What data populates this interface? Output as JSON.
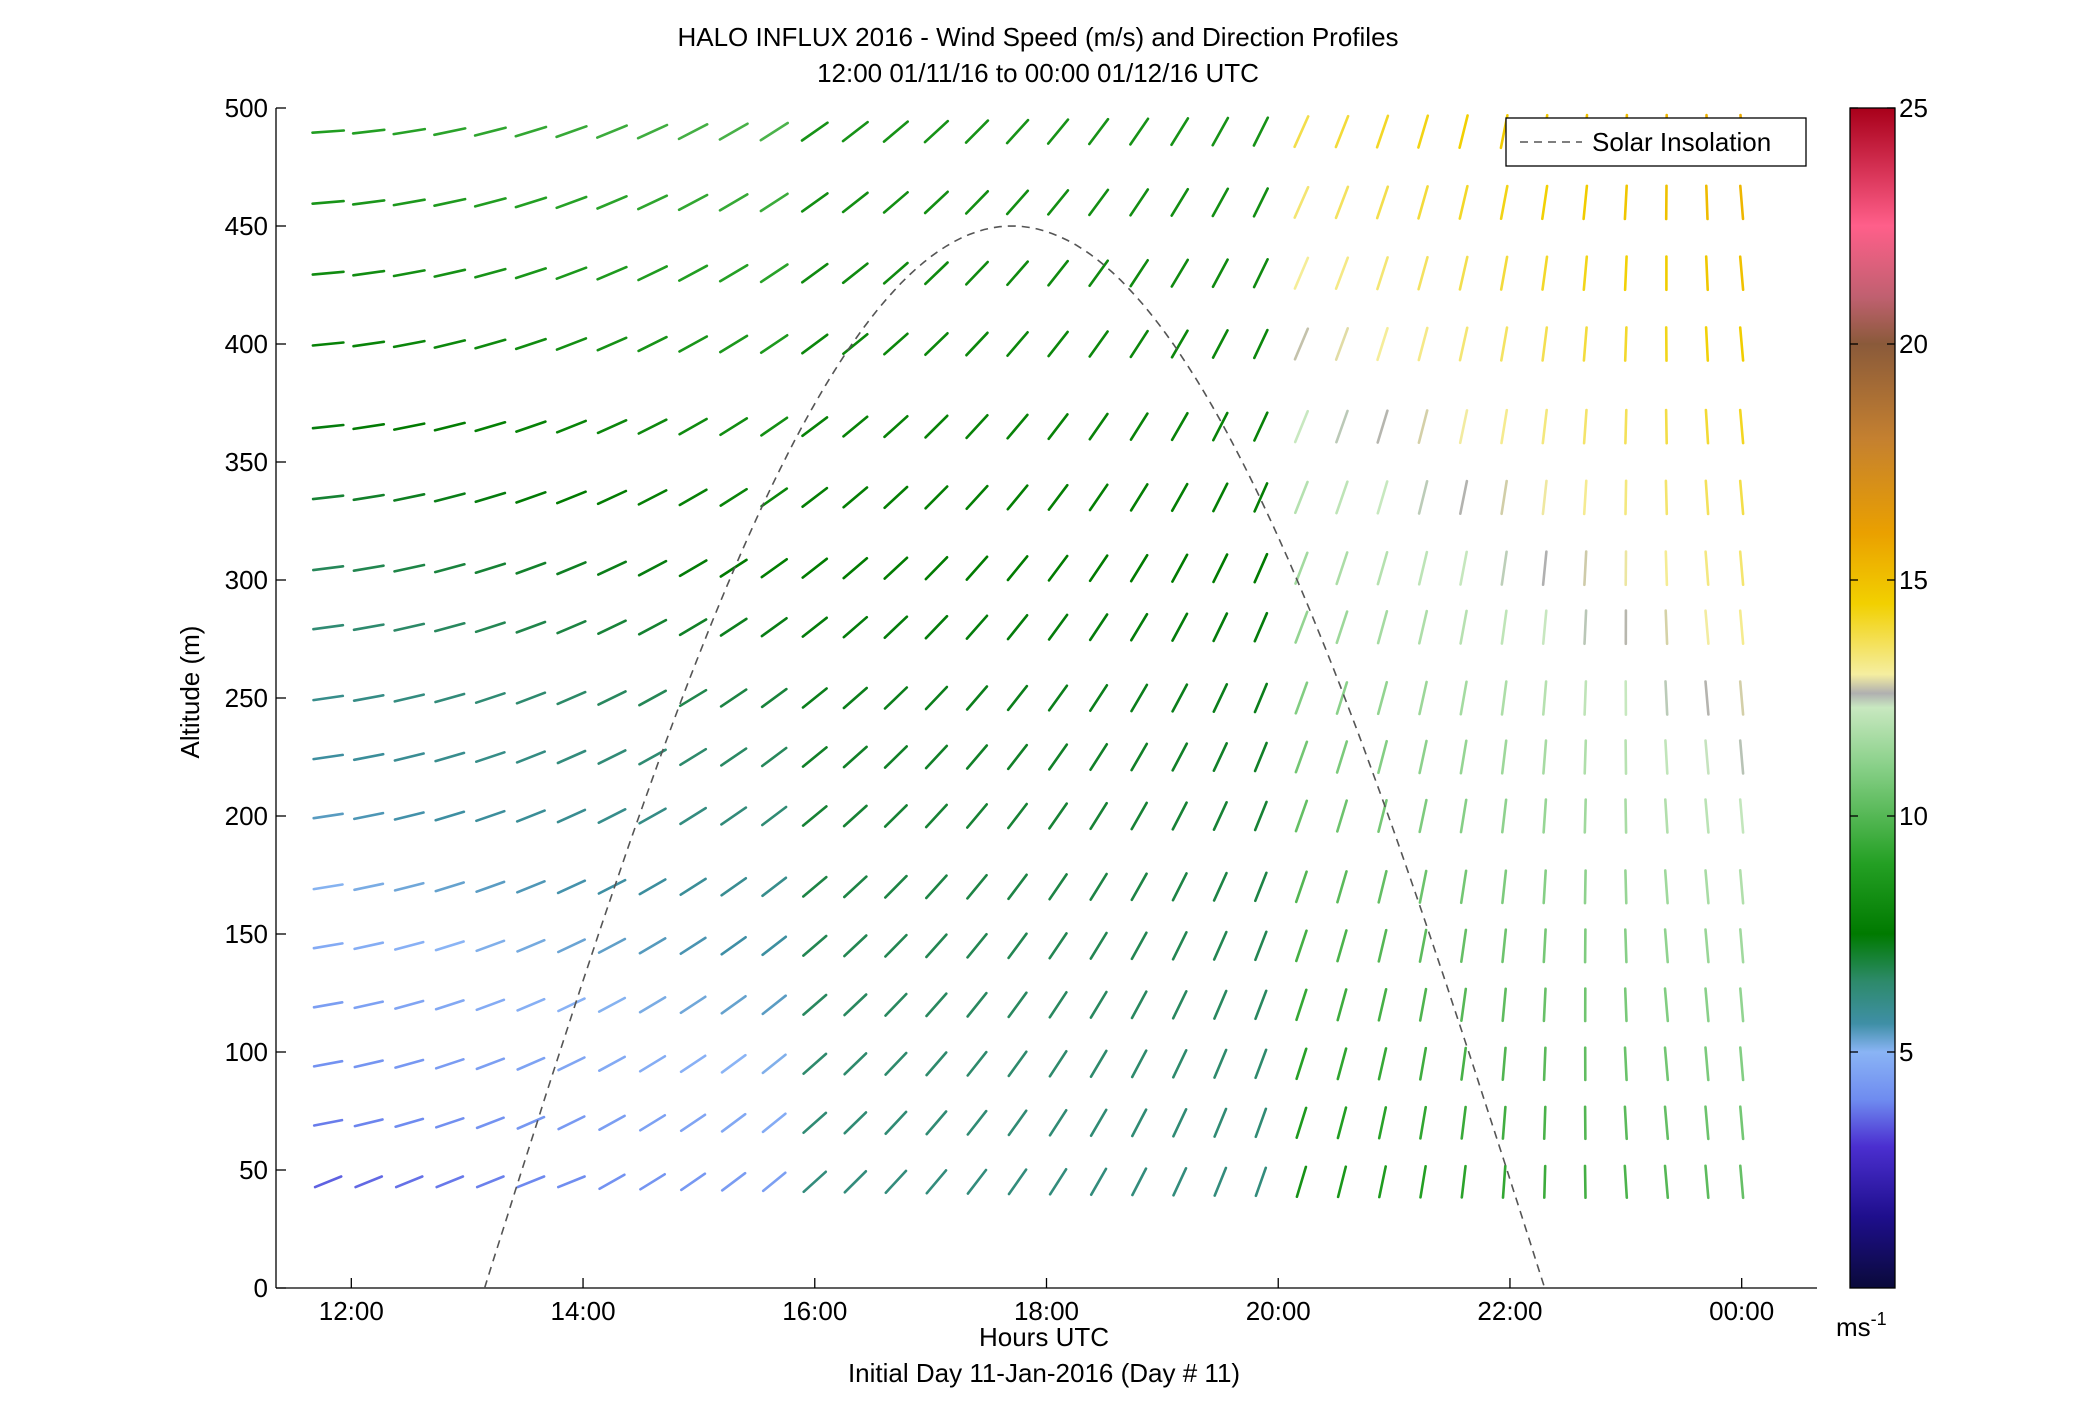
{
  "chart_data": {
    "type": "wind-barb-profile",
    "title": "HALO INFLUX 2016 - Wind Speed (m/s) and Direction Profiles",
    "subtitle": "12:00 01/11/16 to 00:00 01/12/16  UTC",
    "xlabel": "Hours UTC",
    "xlabel2": "Initial Day 11-Jan-2016 (Day # 11)",
    "ylabel": "Altitude (m)",
    "xlim_hours": [
      11.35,
      24.65
    ],
    "ylim": [
      0,
      500
    ],
    "x_ticks": [
      {
        "v": 12,
        "label": "12:00"
      },
      {
        "v": 14,
        "label": "14:00"
      },
      {
        "v": 16,
        "label": "16:00"
      },
      {
        "v": 18,
        "label": "18:00"
      },
      {
        "v": 20,
        "label": "20:00"
      },
      {
        "v": 22,
        "label": "22:00"
      },
      {
        "v": 24,
        "label": "00:00"
      }
    ],
    "y_ticks": [
      0,
      50,
      100,
      150,
      200,
      250,
      300,
      350,
      400,
      450,
      500
    ],
    "legend": {
      "label": "Solar Insolation",
      "placement": "top-right",
      "style": "dashed"
    },
    "solar_insolation": {
      "start_hour": 13.15,
      "peak_hour": 17.7,
      "end_hour": 22.3,
      "peak_alt": 450
    },
    "colorbar": {
      "range": [
        0,
        25
      ],
      "ticks": [
        5,
        10,
        15,
        20,
        25
      ],
      "unit": "ms",
      "unit_exp": "-1",
      "stops": [
        {
          "v": 0,
          "c": "#0a0a3a"
        },
        {
          "v": 1.5,
          "c": "#1e0e8c"
        },
        {
          "v": 3,
          "c": "#4b2fd0"
        },
        {
          "v": 4,
          "c": "#6f8cf0"
        },
        {
          "v": 5,
          "c": "#8ab4f5"
        },
        {
          "v": 5.6,
          "c": "#3f8fa6"
        },
        {
          "v": 6.5,
          "c": "#2d8a6a"
        },
        {
          "v": 7.5,
          "c": "#007a00"
        },
        {
          "v": 9,
          "c": "#24a024"
        },
        {
          "v": 11,
          "c": "#86cf86"
        },
        {
          "v": 12.3,
          "c": "#c8e8c0"
        },
        {
          "v": 12.6,
          "c": "#b0b0b0"
        },
        {
          "v": 13,
          "c": "#f5eea0"
        },
        {
          "v": 14.5,
          "c": "#f2d000"
        },
        {
          "v": 16,
          "c": "#eaa000"
        },
        {
          "v": 18,
          "c": "#c48030"
        },
        {
          "v": 20,
          "c": "#8a5a3a"
        },
        {
          "v": 21,
          "c": "#c06070"
        },
        {
          "v": 22.5,
          "c": "#ff5f8a"
        },
        {
          "v": 25,
          "c": "#a8001a"
        }
      ]
    },
    "barb_grid": {
      "times_hours": [
        11.8,
        12.15,
        12.5,
        12.85,
        13.2,
        13.55,
        13.9,
        14.25,
        14.6,
        14.95,
        15.3,
        15.65,
        16.0,
        16.35,
        16.7,
        17.05,
        17.4,
        17.75,
        18.1,
        18.45,
        18.8,
        19.15,
        19.5,
        19.85,
        20.2,
        20.55,
        20.9,
        21.25,
        21.6,
        21.95,
        22.3,
        22.65,
        23.0,
        23.35,
        23.7,
        24.0
      ],
      "altitudes_m": [
        45,
        70,
        95,
        120,
        145,
        170,
        200,
        225,
        250,
        280,
        305,
        335,
        365,
        400,
        430,
        460,
        490
      ],
      "direction_note": "stick drawn along wind direction; pitch angle in degrees from horizontal, speed in m/s"
    }
  }
}
